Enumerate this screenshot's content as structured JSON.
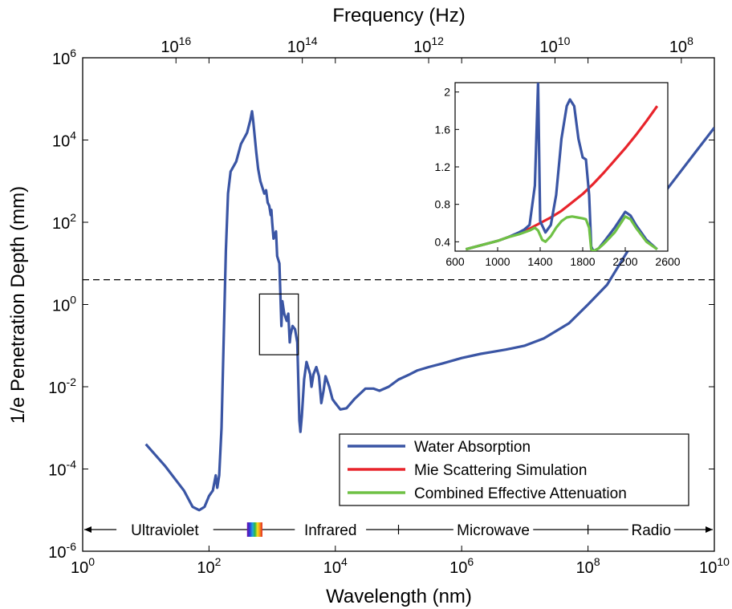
{
  "chart_data": {
    "type": "line",
    "xlabel": "Wavelength (nm)",
    "ylabel": "1/e Penetration Depth (mm)",
    "top_axis_label": "Frequency (Hz)",
    "x_scale": "log",
    "y_scale": "log",
    "xlim": [
      1,
      10000000000
    ],
    "ylim": [
      1e-06,
      1000000
    ],
    "x_ticks": [
      {
        "value": 1,
        "base": "10",
        "exp": "0"
      },
      {
        "value": 100,
        "base": "10",
        "exp": "2"
      },
      {
        "value": 10000,
        "base": "10",
        "exp": "4"
      },
      {
        "value": 1000000,
        "base": "10",
        "exp": "6"
      },
      {
        "value": 100000000,
        "base": "10",
        "exp": "8"
      },
      {
        "value": 10000000000,
        "base": "10",
        "exp": "10"
      }
    ],
    "y_ticks": [
      {
        "value": 1e-06,
        "base": "10",
        "exp": "-6"
      },
      {
        "value": 0.0001,
        "base": "10",
        "exp": "-4"
      },
      {
        "value": 0.01,
        "base": "10",
        "exp": "-2"
      },
      {
        "value": 1,
        "base": "10",
        "exp": "0"
      },
      {
        "value": 100,
        "base": "10",
        "exp": "2"
      },
      {
        "value": 10000,
        "base": "10",
        "exp": "4"
      },
      {
        "value": 1000000,
        "base": "10",
        "exp": "6"
      }
    ],
    "top_ticks": [
      {
        "wavelength_nm": 30,
        "base": "10",
        "exp": "16"
      },
      {
        "wavelength_nm": 3000,
        "base": "10",
        "exp": "14"
      },
      {
        "wavelength_nm": 300000,
        "base": "10",
        "exp": "12"
      },
      {
        "wavelength_nm": 30000000,
        "base": "10",
        "exp": "10"
      },
      {
        "wavelength_nm": 3000000000,
        "base": "10",
        "exp": "8"
      }
    ],
    "reference_line_y": 4,
    "highlight_box": {
      "x": [
        630,
        2600
      ],
      "y": [
        0.06,
        1.8
      ]
    },
    "series": [
      {
        "name": "Water Absorption",
        "color": "#3a55a4",
        "points": [
          [
            10,
            0.0004
          ],
          [
            20,
            0.00012
          ],
          [
            40,
            3e-05
          ],
          [
            55,
            1.2e-05
          ],
          [
            70,
            1e-05
          ],
          [
            85,
            1.2e-05
          ],
          [
            100,
            2.2e-05
          ],
          [
            115,
            3e-05
          ],
          [
            128,
            7e-05
          ],
          [
            135,
            3.5e-05
          ],
          [
            145,
            7e-05
          ],
          [
            158,
            0.001
          ],
          [
            170,
            0.1
          ],
          [
            185,
            20
          ],
          [
            200,
            500
          ],
          [
            220,
            1700
          ],
          [
            270,
            3000
          ],
          [
            320,
            8000
          ],
          [
            400,
            15000
          ],
          [
            450,
            30000
          ],
          [
            480,
            50000
          ],
          [
            500,
            30000
          ],
          [
            560,
            5000
          ],
          [
            600,
            2000
          ],
          [
            650,
            1000
          ],
          [
            700,
            700
          ],
          [
            750,
            500
          ],
          [
            800,
            600
          ],
          [
            850,
            300
          ],
          [
            900,
            250
          ],
          [
            950,
            150
          ],
          [
            970,
            200
          ],
          [
            1000,
            100
          ],
          [
            1050,
            40
          ],
          [
            1100,
            50
          ],
          [
            1150,
            60
          ],
          [
            1200,
            15
          ],
          [
            1300,
            10
          ],
          [
            1400,
            0.3
          ],
          [
            1450,
            1.2
          ],
          [
            1550,
            0.6
          ],
          [
            1700,
            0.4
          ],
          [
            1800,
            0.6
          ],
          [
            1900,
            0.12
          ],
          [
            1950,
            0.18
          ],
          [
            2100,
            0.3
          ],
          [
            2300,
            0.25
          ],
          [
            2500,
            0.12
          ],
          [
            2700,
            0.0015
          ],
          [
            2800,
            0.0008
          ],
          [
            2950,
            0.002
          ],
          [
            3200,
            0.015
          ],
          [
            3500,
            0.04
          ],
          [
            4000,
            0.02
          ],
          [
            4200,
            0.01
          ],
          [
            4500,
            0.02
          ],
          [
            5000,
            0.03
          ],
          [
            5500,
            0.018
          ],
          [
            6000,
            0.004
          ],
          [
            6500,
            0.008
          ],
          [
            7000,
            0.018
          ],
          [
            8000,
            0.01
          ],
          [
            9000,
            0.005
          ],
          [
            10000,
            0.004
          ],
          [
            12000,
            0.0028
          ],
          [
            15000,
            0.003
          ],
          [
            20000,
            0.005
          ],
          [
            30000,
            0.009
          ],
          [
            40000,
            0.009
          ],
          [
            50000,
            0.008
          ],
          [
            70000,
            0.01
          ],
          [
            100000,
            0.015
          ],
          [
            150000,
            0.02
          ],
          [
            200000,
            0.025
          ],
          [
            300000,
            0.03
          ],
          [
            500000,
            0.037
          ],
          [
            1000000,
            0.05
          ],
          [
            2000000,
            0.063
          ],
          [
            3000000,
            0.07
          ],
          [
            5000000,
            0.08
          ],
          [
            10000000,
            0.1
          ],
          [
            20000000,
            0.15
          ],
          [
            50000000,
            0.35
          ],
          [
            100000000,
            1
          ],
          [
            200000000,
            3
          ],
          [
            500000000,
            30
          ],
          [
            1000000000,
            200
          ],
          [
            2000000000,
            800
          ],
          [
            5000000000,
            5000
          ],
          [
            10000000000,
            20000
          ]
        ]
      },
      {
        "name": "Mie Scattering Simulation",
        "color": "#e8242b"
      },
      {
        "name": "Combined Effective Attenuation",
        "color": "#6fc145"
      }
    ],
    "inset": {
      "xlim": [
        600,
        2600
      ],
      "ylim": [
        0.3,
        2.1
      ],
      "x_ticks": [
        "600",
        "1000",
        "1400",
        "1800",
        "2200",
        "2600"
      ],
      "y_ticks": [
        "0.4",
        "0.8",
        "1.2",
        "1.6",
        "2"
      ],
      "series": [
        {
          "name": "Water Absorption",
          "color": "#3a55a4",
          "points": [
            [
              700,
              0.32
            ],
            [
              800,
              0.35
            ],
            [
              900,
              0.38
            ],
            [
              1000,
              0.41
            ],
            [
              1100,
              0.45
            ],
            [
              1200,
              0.5
            ],
            [
              1250,
              0.53
            ],
            [
              1300,
              0.58
            ],
            [
              1350,
              1.0
            ],
            [
              1380,
              2.1
            ],
            [
              1400,
              0.62
            ],
            [
              1450,
              0.5
            ],
            [
              1500,
              0.58
            ],
            [
              1550,
              0.9
            ],
            [
              1600,
              1.5
            ],
            [
              1650,
              1.85
            ],
            [
              1680,
              1.92
            ],
            [
              1720,
              1.85
            ],
            [
              1760,
              1.5
            ],
            [
              1800,
              1.3
            ],
            [
              1830,
              1.28
            ],
            [
              1860,
              0.9
            ],
            [
              1880,
              0.35
            ],
            [
              1900,
              0.3
            ],
            [
              1950,
              0.33
            ],
            [
              2000,
              0.4
            ],
            [
              2100,
              0.55
            ],
            [
              2200,
              0.72
            ],
            [
              2250,
              0.68
            ],
            [
              2300,
              0.58
            ],
            [
              2400,
              0.42
            ],
            [
              2500,
              0.32
            ]
          ]
        },
        {
          "name": "Mie Scattering Simulation",
          "color": "#e8242b",
          "points": [
            [
              700,
              0.32
            ],
            [
              800,
              0.35
            ],
            [
              900,
              0.38
            ],
            [
              1000,
              0.41
            ],
            [
              1100,
              0.45
            ],
            [
              1200,
              0.49
            ],
            [
              1300,
              0.54
            ],
            [
              1400,
              0.6
            ],
            [
              1500,
              0.66
            ],
            [
              1600,
              0.73
            ],
            [
              1700,
              0.82
            ],
            [
              1800,
              0.91
            ],
            [
              1900,
              1.02
            ],
            [
              2000,
              1.14
            ],
            [
              2100,
              1.27
            ],
            [
              2200,
              1.4
            ],
            [
              2300,
              1.54
            ],
            [
              2400,
              1.69
            ],
            [
              2500,
              1.85
            ]
          ]
        },
        {
          "name": "Combined Effective Attenuation",
          "color": "#6fc145",
          "points": [
            [
              700,
              0.32
            ],
            [
              800,
              0.35
            ],
            [
              900,
              0.38
            ],
            [
              1000,
              0.41
            ],
            [
              1100,
              0.45
            ],
            [
              1200,
              0.48
            ],
            [
              1300,
              0.52
            ],
            [
              1350,
              0.55
            ],
            [
              1380,
              0.52
            ],
            [
              1420,
              0.42
            ],
            [
              1450,
              0.4
            ],
            [
              1500,
              0.46
            ],
            [
              1550,
              0.55
            ],
            [
              1600,
              0.62
            ],
            [
              1650,
              0.66
            ],
            [
              1700,
              0.67
            ],
            [
              1750,
              0.66
            ],
            [
              1800,
              0.65
            ],
            [
              1830,
              0.64
            ],
            [
              1860,
              0.55
            ],
            [
              1880,
              0.32
            ],
            [
              1900,
              0.3
            ],
            [
              1950,
              0.33
            ],
            [
              2000,
              0.38
            ],
            [
              2100,
              0.5
            ],
            [
              2200,
              0.67
            ],
            [
              2250,
              0.64
            ],
            [
              2300,
              0.55
            ],
            [
              2400,
              0.4
            ],
            [
              2500,
              0.32
            ]
          ]
        }
      ]
    },
    "legend": {
      "position": "bottom-right",
      "entries": [
        {
          "label": "Water Absorption",
          "color": "#3a55a4"
        },
        {
          "label": "Mie Scattering Simulation",
          "color": "#e8242b"
        },
        {
          "label": "Combined Effective Attenuation",
          "color": "#6fc145"
        }
      ]
    },
    "bands": [
      {
        "label": "Ultraviolet",
        "from": 1,
        "to": 400
      },
      {
        "label": "Infrared",
        "from": 700,
        "to": 100000
      },
      {
        "label": "Microwave",
        "from": 100000,
        "to": 100000000
      },
      {
        "label": "Radio",
        "from": 100000000,
        "to": 10000000000
      }
    ],
    "visible_band": {
      "from": 400,
      "to": 700
    }
  }
}
